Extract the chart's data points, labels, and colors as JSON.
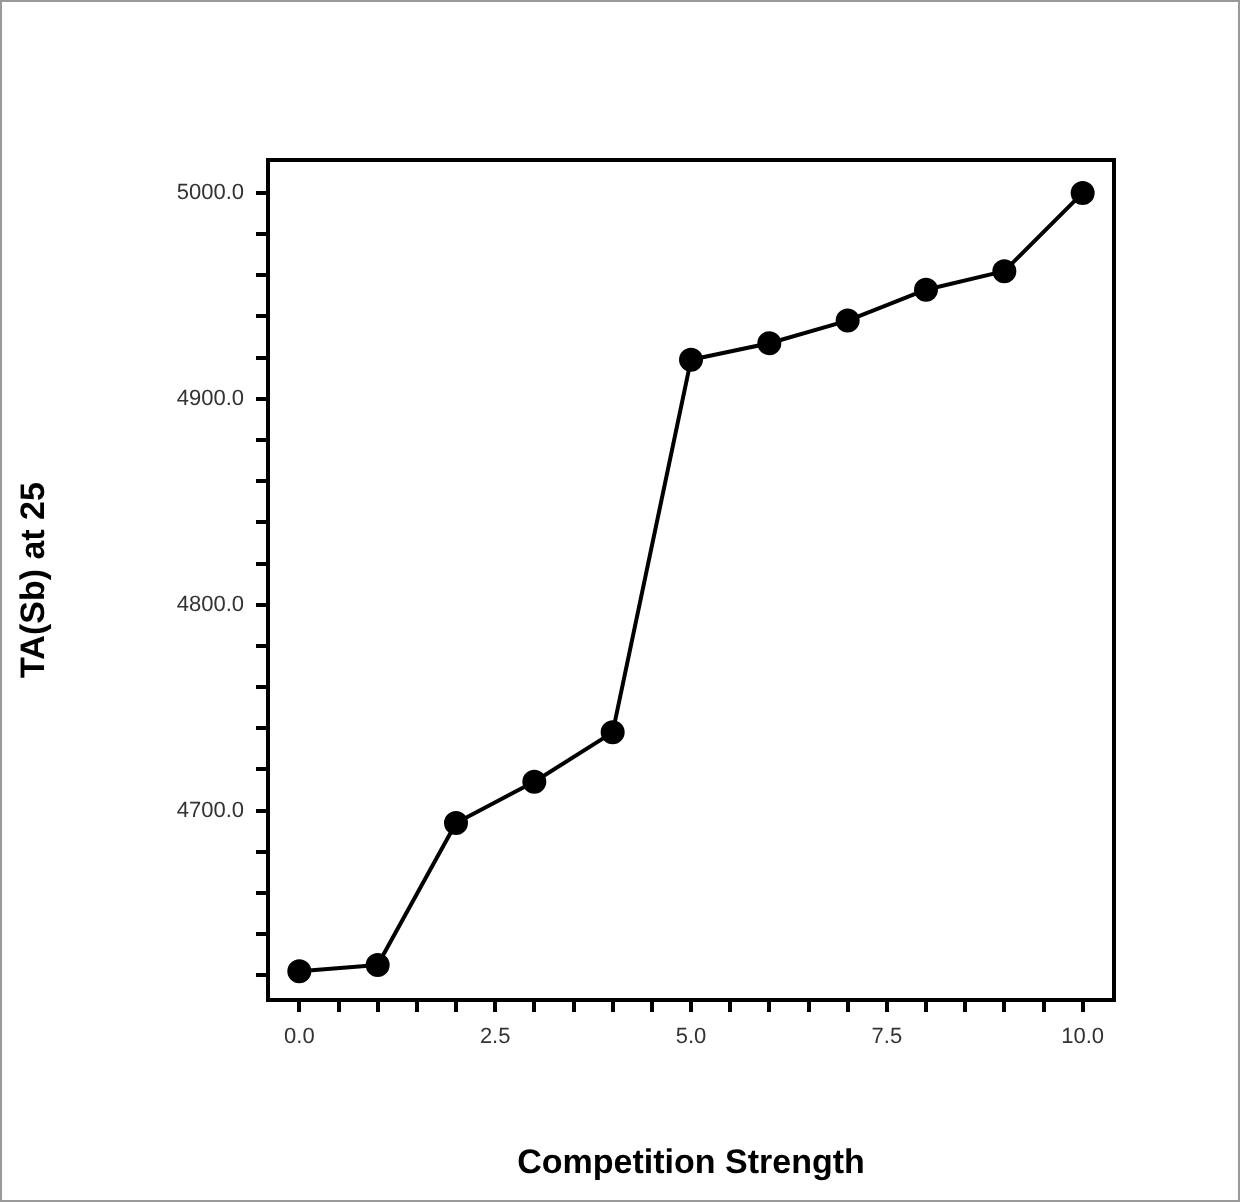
{
  "chart_data": {
    "type": "line",
    "xlabel": "Competition Strength",
    "ylabel": "TA(Sb) at 25",
    "x": [
      0,
      1,
      2,
      3,
      4,
      5,
      6,
      7,
      8,
      9,
      10
    ],
    "series": [
      {
        "color": "#000000",
        "values": [
          4622,
          4625,
          4694,
          4714,
          4738,
          4919,
          4927,
          4938,
          4953,
          4962,
          5000
        ]
      }
    ],
    "xlim": [
      -0.4,
      10.4
    ],
    "xticks": [
      {
        "value": 0,
        "label": "0.0"
      },
      {
        "value": 0.5,
        "label": null
      },
      {
        "value": 1,
        "label": null
      },
      {
        "value": 1.5,
        "label": null
      },
      {
        "value": 2,
        "label": null
      },
      {
        "value": 2.5,
        "label": "2.5"
      },
      {
        "value": 3,
        "label": null
      },
      {
        "value": 3.5,
        "label": null
      },
      {
        "value": 4,
        "label": null
      },
      {
        "value": 4.5,
        "label": null
      },
      {
        "value": 5,
        "label": "5.0"
      },
      {
        "value": 5.5,
        "label": null
      },
      {
        "value": 6,
        "label": null
      },
      {
        "value": 6.5,
        "label": null
      },
      {
        "value": 7,
        "label": null
      },
      {
        "value": 7.5,
        "label": "7.5"
      },
      {
        "value": 8,
        "label": null
      },
      {
        "value": 8.5,
        "label": null
      },
      {
        "value": 9,
        "label": null
      },
      {
        "value": 9.5,
        "label": null
      },
      {
        "value": 10,
        "label": "10.0"
      }
    ],
    "ylim": [
      4608,
      5016
    ],
    "yticks": [
      {
        "value": 4620,
        "label": null
      },
      {
        "value": 4640,
        "label": null
      },
      {
        "value": 4660,
        "label": null
      },
      {
        "value": 4680,
        "label": null
      },
      {
        "value": 4700,
        "label": "4700.0"
      },
      {
        "value": 4720,
        "label": null
      },
      {
        "value": 4740,
        "label": null
      },
      {
        "value": 4760,
        "label": null
      },
      {
        "value": 4780,
        "label": null
      },
      {
        "value": 4800,
        "label": "4800.0"
      },
      {
        "value": 4820,
        "label": null
      },
      {
        "value": 4840,
        "label": null
      },
      {
        "value": 4860,
        "label": null
      },
      {
        "value": 4880,
        "label": null
      },
      {
        "value": 4900,
        "label": "4900.0"
      },
      {
        "value": 4920,
        "label": null
      },
      {
        "value": 4940,
        "label": null
      },
      {
        "value": 4960,
        "label": null
      },
      {
        "value": 4980,
        "label": null
      },
      {
        "value": 5000,
        "label": "5000.0"
      }
    ],
    "grid": false,
    "legend": false,
    "marker": "circle",
    "line_style": "solid"
  }
}
